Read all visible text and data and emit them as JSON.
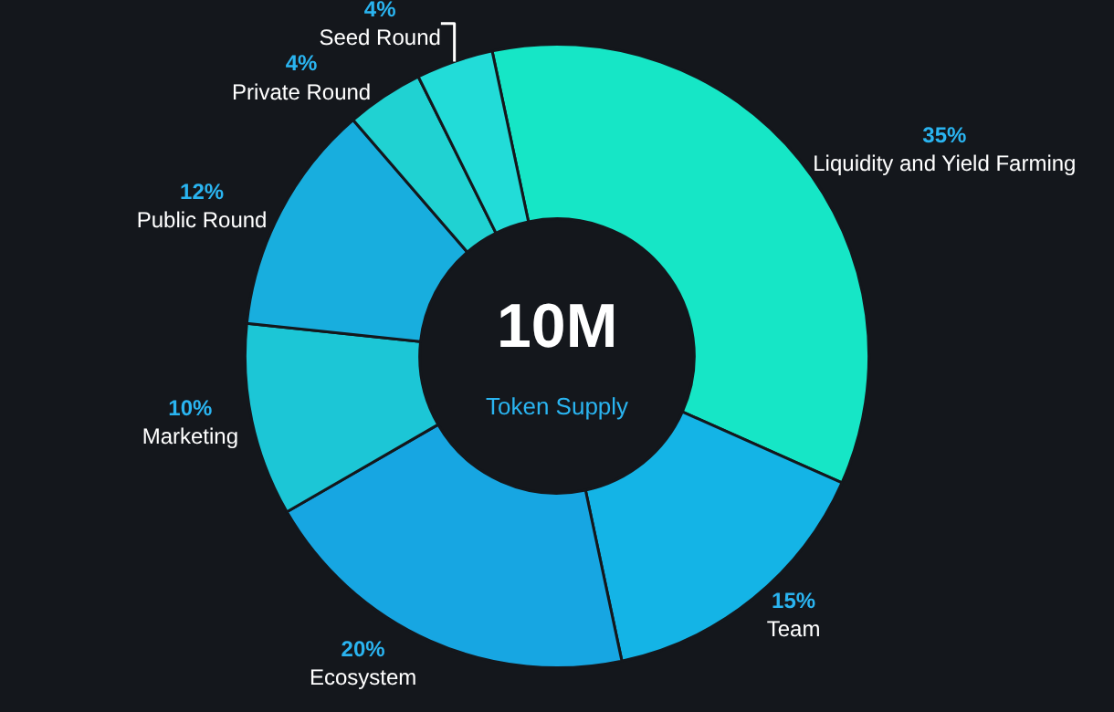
{
  "chart_data": {
    "type": "donut",
    "title": "10M",
    "subtitle": "Token Supply",
    "categories": [
      "Liquidity and Yield Farming",
      "Team",
      "Ecosystem",
      "Marketing",
      "Public Round",
      "Private Round",
      "Seed Round"
    ],
    "values": [
      35,
      15,
      20,
      10,
      12,
      4,
      4
    ],
    "value_labels": [
      "35%",
      "15%",
      "20%",
      "10%",
      "12%",
      "4%",
      "4%"
    ],
    "colors": [
      "#16e6c6",
      "#14b4e6",
      "#17a6e2",
      "#1cc6d6",
      "#18aede",
      "#20d2d2",
      "#22dcd8"
    ],
    "legend": false
  }
}
